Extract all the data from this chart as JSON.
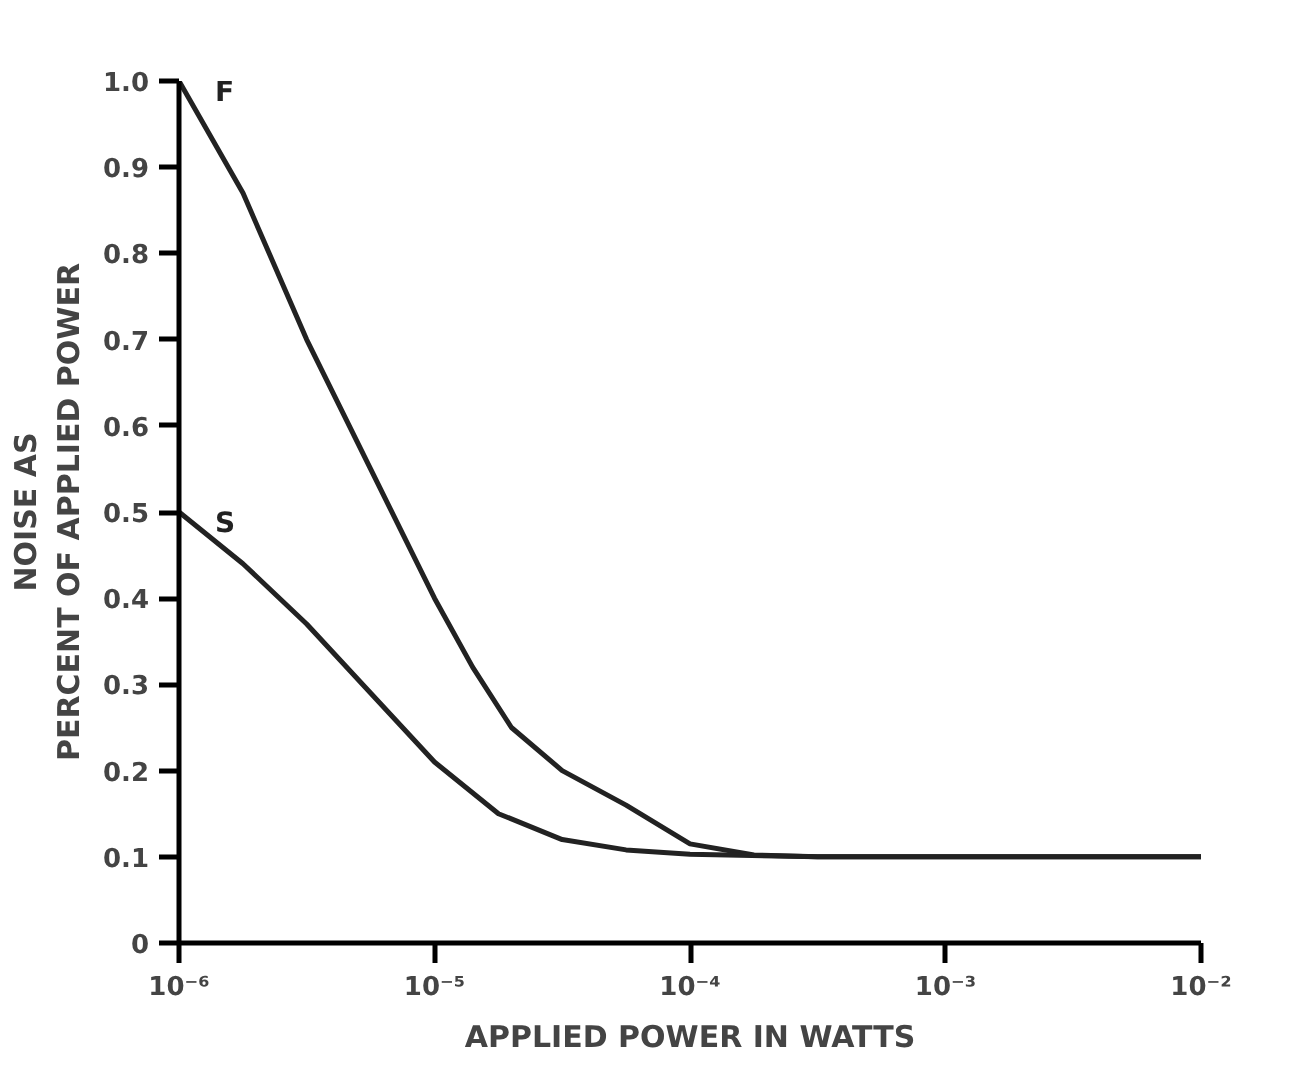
{
  "chart_data": {
    "type": "line",
    "xlabel": "APPLIED POWER IN WATTS",
    "ylabel": "NOISE AS\nPERCENT OF APPLIED POWER",
    "log": "x",
    "xlim": [
      1e-06,
      0.01
    ],
    "ylim": [
      0,
      1.0
    ],
    "xticks": [
      {
        "value": 1e-06,
        "label": "10⁻⁶"
      },
      {
        "value": 1e-05,
        "label": "10⁻⁵"
      },
      {
        "value": 0.0001,
        "label": "10⁻⁴"
      },
      {
        "value": 0.001,
        "label": "10⁻³"
      },
      {
        "value": 0.01,
        "label": "10⁻²"
      }
    ],
    "yticks": [
      0,
      0.1,
      0.2,
      0.3,
      0.4,
      0.5,
      0.6,
      0.7,
      0.8,
      0.9,
      {
        "value": 1.0,
        "label": "1.0"
      }
    ],
    "grid": false,
    "series": [
      {
        "name": "F",
        "color": "#222222",
        "x": [
          1e-06,
          1.78e-06,
          3.16e-06,
          5.62e-06,
          1e-05,
          1.41e-05,
          2e-05,
          3.16e-05,
          5.62e-05,
          0.0001,
          0.000178,
          0.000316,
          0.01
        ],
        "values": [
          1.0,
          0.87,
          0.7,
          0.55,
          0.4,
          0.32,
          0.25,
          0.2,
          0.16,
          0.115,
          0.102,
          0.1,
          0.1
        ]
      },
      {
        "name": "S",
        "color": "#222222",
        "x": [
          1e-06,
          1.78e-06,
          3.16e-06,
          5.62e-06,
          1e-05,
          1.78e-05,
          3.16e-05,
          5.62e-05,
          0.0001,
          0.000316,
          0.01
        ],
        "values": [
          0.5,
          0.44,
          0.37,
          0.29,
          0.21,
          0.15,
          0.12,
          0.108,
          0.103,
          0.1,
          0.1
        ]
      }
    ]
  }
}
